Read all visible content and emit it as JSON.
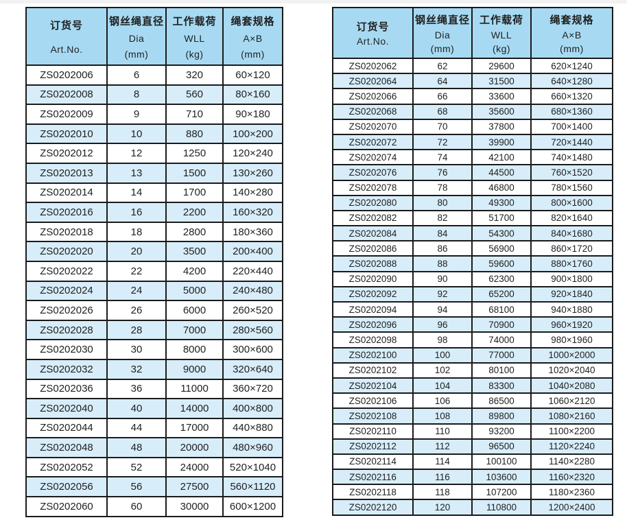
{
  "columns": {
    "art_no": {
      "cn": "订货号",
      "en": "Art.No."
    },
    "dia": {
      "cn": "钢丝绳直径",
      "en": "Dia",
      "unit": "(mm)"
    },
    "wll": {
      "cn": "工作载荷",
      "en": "WLL",
      "unit": "(kg)"
    },
    "spec": {
      "cn": "绳套规格",
      "en": "A×B",
      "unit": "(mm)"
    }
  },
  "tables": [
    {
      "rows": [
        [
          "ZS0202006",
          "6",
          "320",
          "60×120"
        ],
        [
          "ZS0202008",
          "8",
          "560",
          "80×160"
        ],
        [
          "ZS0202009",
          "9",
          "710",
          "90×180"
        ],
        [
          "ZS0202010",
          "10",
          "880",
          "100×200"
        ],
        [
          "ZS0202012",
          "12",
          "1250",
          "120×240"
        ],
        [
          "ZS0202013",
          "13",
          "1500",
          "130×260"
        ],
        [
          "ZS0202014",
          "14",
          "1700",
          "140×280"
        ],
        [
          "ZS0202016",
          "16",
          "2200",
          "160×320"
        ],
        [
          "ZS0202018",
          "18",
          "2800",
          "180×360"
        ],
        [
          "ZS0202020",
          "20",
          "3500",
          "200×400"
        ],
        [
          "ZS0202022",
          "22",
          "4200",
          "220×440"
        ],
        [
          "ZS0202024",
          "24",
          "5000",
          "240×480"
        ],
        [
          "ZS0202026",
          "26",
          "6000",
          "260×520"
        ],
        [
          "ZS0202028",
          "28",
          "7000",
          "280×560"
        ],
        [
          "ZS0202030",
          "30",
          "8000",
          "300×600"
        ],
        [
          "ZS0202032",
          "32",
          "9000",
          "320×640"
        ],
        [
          "ZS0202036",
          "36",
          "11000",
          "360×720"
        ],
        [
          "ZS0202040",
          "40",
          "14000",
          "400×800"
        ],
        [
          "ZS0202044",
          "44",
          "17000",
          "440×880"
        ],
        [
          "ZS0202048",
          "48",
          "20000",
          "480×960"
        ],
        [
          "ZS0202052",
          "52",
          "24000",
          "520×1040"
        ],
        [
          "ZS0202056",
          "56",
          "27500",
          "560×1120"
        ],
        [
          "ZS0202060",
          "60",
          "30000",
          "600×1200"
        ]
      ]
    },
    {
      "rows": [
        [
          "ZS0202062",
          "62",
          "29600",
          "620×1240"
        ],
        [
          "ZS0202064",
          "64",
          "31500",
          "640×1280"
        ],
        [
          "ZS0202066",
          "66",
          "33600",
          "660×1320"
        ],
        [
          "ZS0202068",
          "68",
          "35600",
          "680×1360"
        ],
        [
          "ZS0202070",
          "70",
          "37800",
          "700×1400"
        ],
        [
          "ZS0202072",
          "72",
          "39900",
          "720×1440"
        ],
        [
          "ZS0202074",
          "74",
          "42100",
          "740×1480"
        ],
        [
          "ZS0202076",
          "76",
          "44500",
          "760×1520"
        ],
        [
          "ZS0202078",
          "78",
          "46800",
          "780×1560"
        ],
        [
          "ZS0202080",
          "80",
          "49300",
          "800×1600"
        ],
        [
          "ZS0202082",
          "82",
          "51700",
          "820×1640"
        ],
        [
          "ZS0202084",
          "84",
          "54300",
          "840×1680"
        ],
        [
          "ZS0202086",
          "86",
          "56900",
          "860×1720"
        ],
        [
          "ZS0202088",
          "88",
          "59600",
          "880×1760"
        ],
        [
          "ZS0202090",
          "90",
          "62300",
          "900×1800"
        ],
        [
          "ZS0202092",
          "92",
          "65200",
          "920×1840"
        ],
        [
          "ZS0202094",
          "94",
          "68100",
          "940×1880"
        ],
        [
          "ZS0202096",
          "96",
          "70900",
          "960×1920"
        ],
        [
          "ZS0202098",
          "98",
          "74000",
          "980×1960"
        ],
        [
          "ZS0202100",
          "100",
          "77000",
          "1000×2000"
        ],
        [
          "ZS0202102",
          "102",
          "80100",
          "1020×2040"
        ],
        [
          "ZS0202104",
          "104",
          "83300",
          "1040×2080"
        ],
        [
          "ZS0202106",
          "106",
          "86500",
          "1060×2120"
        ],
        [
          "ZS0202108",
          "108",
          "89800",
          "1080×2160"
        ],
        [
          "ZS0202110",
          "110",
          "93200",
          "1100×2200"
        ],
        [
          "ZS0202112",
          "112",
          "96500",
          "1120×2240"
        ],
        [
          "ZS0202114",
          "114",
          "100100",
          "1140×2280"
        ],
        [
          "ZS0202116",
          "116",
          "103600",
          "1160×2320"
        ],
        [
          "ZS0202118",
          "118",
          "107200",
          "1180×2360"
        ],
        [
          "ZS0202120",
          "120",
          "110800",
          "1200×2400"
        ]
      ]
    }
  ],
  "colors": {
    "header_bg": "#a7daf2",
    "row_even_bg": "#d7edf9",
    "row_odd_bg": "#ffffff",
    "border": "#1a1a1a",
    "text": "#1f1f1f"
  }
}
